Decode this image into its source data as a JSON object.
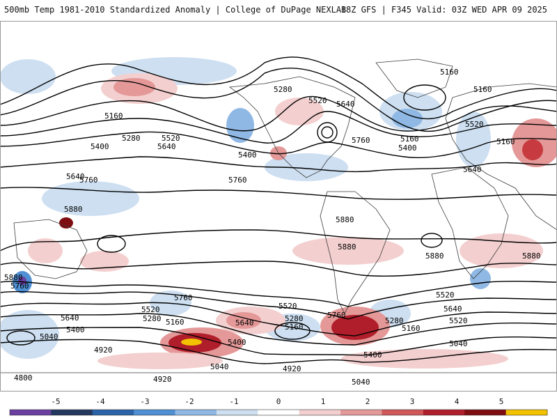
{
  "header": {
    "title": "500mb Temp 1981-2010 Standardized Anomaly | College of DuPage NEXLAB",
    "run_info": "18Z GFS | F345 Valid: 03Z WED APR 09 2025"
  },
  "colorbar": {
    "ticks": [
      "-5",
      "-4",
      "-3",
      "-2",
      "-1",
      "0",
      "1",
      "2",
      "3",
      "4",
      "5"
    ],
    "colors": [
      "#6a3fa0",
      "#23375f",
      "#2b63a8",
      "#4f8fd3",
      "#8fb8e4",
      "#cddff1",
      "#ffffff",
      "#f4cfcf",
      "#e49898",
      "#d05858",
      "#b01e2b",
      "#7e0d12",
      "#f2c200"
    ]
  },
  "contours": {
    "labels": [
      "5160",
      "5160",
      "5280",
      "5160",
      "5520",
      "5640",
      "5280",
      "5400",
      "5520",
      "5640",
      "5400",
      "5760",
      "5160",
      "5400",
      "5760",
      "5640",
      "5520",
      "5160",
      "5640",
      "5760",
      "5880",
      "5880",
      "5880",
      "5880",
      "5880",
      "5880",
      "5760",
      "5760",
      "5640",
      "5520",
      "5280",
      "5160",
      "5400",
      "5040",
      "4920",
      "4800",
      "4920",
      "5040",
      "5400",
      "5640",
      "5520",
      "5280",
      "5160",
      "4920",
      "5040",
      "5400",
      "5520",
      "5280",
      "5160",
      "5040",
      "5640",
      "5760",
      "5520"
    ]
  },
  "map_colors": {
    "land_outline": "#3a3a3a",
    "contour": "#000000",
    "warm_light": "#f4cfcf",
    "warm_mid": "#e49898",
    "warm_strong": "#c73a3f",
    "warm_max": "#7e0d12",
    "cool_light": "#cddff1",
    "cool_mid": "#8fb8e4",
    "cool_strong": "#4f8fd3"
  }
}
